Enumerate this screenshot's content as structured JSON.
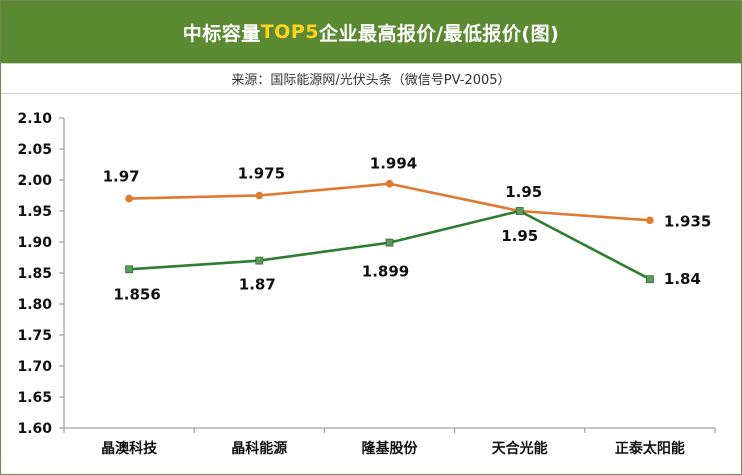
{
  "header": {
    "title_prefix": "中标容量",
    "title_highlight": "TOP5",
    "title_suffix": "企业最高报价/最低报价(图)"
  },
  "source": {
    "text": "来源：国际能源网/光伏头条（微信号PV-2005）"
  },
  "colors": {
    "header_bg": "#5b8a33",
    "highlight": "#ffd21f",
    "series_high": "#e07a2e",
    "series_low": "#2e7d32"
  },
  "chart_data": {
    "type": "line",
    "title": "",
    "xlabel": "",
    "ylabel": "",
    "categories": [
      "晶澳科技",
      "晶科能源",
      "隆基股份",
      "天合光能",
      "正泰太阳能"
    ],
    "ylim": [
      1.6,
      2.1
    ],
    "yticks": [
      "2.10",
      "2.05",
      "2.00",
      "1.95",
      "1.90",
      "1.85",
      "1.80",
      "1.75",
      "1.70",
      "1.65",
      "1.60"
    ],
    "grid": false,
    "legend": "none",
    "series": [
      {
        "key": "high",
        "color": "#e07a2e",
        "values": [
          1.97,
          1.975,
          1.994,
          1.95,
          1.935
        ],
        "labels": [
          "1.97",
          "1.975",
          "1.994",
          "1.95",
          "1.935"
        ]
      },
      {
        "key": "low",
        "color": "#2e7d32",
        "values": [
          1.856,
          1.87,
          1.899,
          1.95,
          1.84
        ],
        "labels": [
          "1.856",
          "1.87",
          "1.899",
          "1.95",
          "1.84"
        ]
      }
    ]
  }
}
